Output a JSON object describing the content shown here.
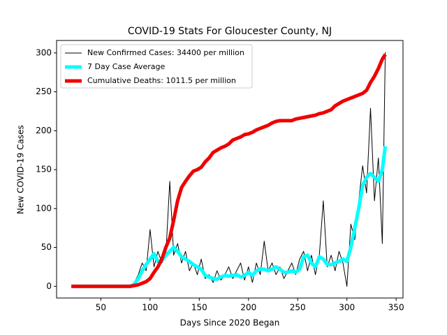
{
  "chart_data": {
    "type": "line",
    "title": "COVID-19 Stats For Gloucester County, NJ",
    "x_label": "Days Since 2020 Began",
    "y_label": "New COVID-19 Cases",
    "x": [
      20,
      25,
      30,
      35,
      40,
      45,
      50,
      55,
      60,
      65,
      70,
      75,
      80,
      84,
      88,
      92,
      96,
      100,
      104,
      108,
      112,
      116,
      120,
      124,
      128,
      132,
      136,
      140,
      144,
      148,
      152,
      156,
      160,
      164,
      168,
      172,
      176,
      180,
      184,
      188,
      192,
      196,
      200,
      204,
      208,
      212,
      216,
      220,
      224,
      228,
      232,
      236,
      240,
      244,
      248,
      252,
      256,
      260,
      264,
      268,
      272,
      276,
      280,
      284,
      288,
      292,
      296,
      300,
      304,
      308,
      312,
      316,
      320,
      324,
      328,
      332,
      336,
      339
    ],
    "series": [
      {
        "name": "New Confirmed Cases: 34400 per million",
        "color": "#000000",
        "width": 1,
        "values": [
          0,
          0,
          0,
          0,
          0,
          0,
          0,
          0,
          0,
          0,
          0,
          0,
          0,
          5,
          15,
          30,
          20,
          73,
          25,
          45,
          30,
          40,
          135,
          40,
          55,
          30,
          45,
          20,
          30,
          15,
          35,
          10,
          15,
          5,
          20,
          8,
          15,
          25,
          10,
          20,
          30,
          8,
          25,
          5,
          30,
          15,
          58,
          20,
          30,
          15,
          25,
          10,
          20,
          30,
          15,
          35,
          45,
          20,
          40,
          15,
          40,
          110,
          25,
          40,
          20,
          45,
          30,
          0,
          80,
          60,
          110,
          155,
          120,
          229,
          110,
          165,
          55,
          301
        ]
      },
      {
        "name": "7 Day Case Average",
        "color": "#00ffff",
        "width": 5,
        "values": [
          0,
          0,
          0,
          0,
          0,
          0,
          0,
          0,
          0,
          0,
          0,
          0,
          0,
          3,
          10,
          20,
          28,
          35,
          42,
          32,
          33,
          40,
          45,
          50,
          45,
          38,
          35,
          32,
          28,
          25,
          22,
          14,
          12,
          10,
          9,
          12,
          14,
          13,
          14,
          15,
          12,
          14,
          18,
          14,
          20,
          22,
          22,
          20,
          22,
          25,
          22,
          18,
          18,
          20,
          18,
          22,
          38,
          40,
          30,
          25,
          38,
          35,
          28,
          28,
          30,
          32,
          35,
          32,
          50,
          75,
          100,
          130,
          140,
          145,
          140,
          135,
          150,
          180
        ]
      },
      {
        "name": "Cumulative Deaths: 1011.5 per million",
        "color": "#ee0000",
        "width": 5,
        "values": [
          0,
          0,
          0,
          0,
          0,
          0,
          0,
          0,
          0,
          0,
          0,
          0,
          0,
          1,
          2,
          4,
          6,
          10,
          18,
          25,
          35,
          50,
          62,
          85,
          110,
          127,
          135,
          142,
          148,
          150,
          153,
          160,
          165,
          172,
          175,
          178,
          180,
          183,
          188,
          190,
          192,
          195,
          196,
          198,
          201,
          203,
          205,
          207,
          210,
          212,
          213,
          213,
          213,
          213,
          215,
          216,
          217,
          218,
          219,
          220,
          222,
          223,
          225,
          227,
          232,
          235,
          238,
          240,
          242,
          244,
          246,
          248,
          252,
          262,
          270,
          280,
          292,
          298
        ]
      }
    ],
    "xlim": [
      5,
      357
    ],
    "xticks": [
      50,
      100,
      150,
      200,
      250,
      300,
      350
    ],
    "ylim": [
      -15,
      316
    ],
    "yticks": [
      0,
      50,
      100,
      150,
      200,
      250,
      300
    ],
    "legend": "upper left"
  }
}
